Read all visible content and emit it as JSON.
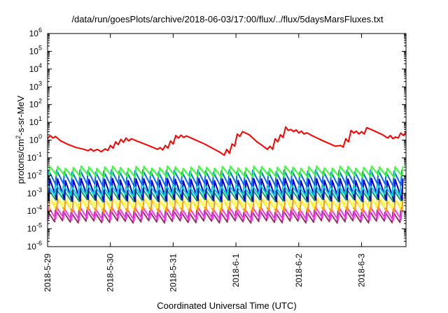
{
  "chart_data": {
    "type": "line",
    "title": "/data/run/goesPlots/archive/2018-06-03/17:00/flux/../flux/5daysMarsFluxes.txt",
    "xlabel": "Coordinated Universal Time (UTC)",
    "ylabel": "protons/cm²-s-sr-MeV",
    "ylabel_parts": {
      "pre": "protons/cm",
      "sup": "2",
      "post": "-s-sr-MeV"
    },
    "yscale": "log",
    "ylim": [
      1e-06,
      1000000.0
    ],
    "xlim": [
      "2018-05-29 00:00",
      "2018-06-03 17:00"
    ],
    "x_ticks": [
      "2018-5-29",
      "2018-5-30",
      "2018-5-31",
      "2018-6-1",
      "2018-6-2",
      "2018-6-3"
    ],
    "y_ticks": [
      {
        "value": 1e-06,
        "base": "10",
        "exp": "-6"
      },
      {
        "value": 1e-05,
        "base": "10",
        "exp": "-5"
      },
      {
        "value": 0.0001,
        "base": "10",
        "exp": "-4"
      },
      {
        "value": 0.001,
        "base": "10",
        "exp": "-3"
      },
      {
        "value": 0.01,
        "base": "10",
        "exp": "-2"
      },
      {
        "value": 0.1,
        "base": "10",
        "exp": "-1"
      },
      {
        "value": 1,
        "base": "10",
        "exp": "0"
      },
      {
        "value": 10,
        "base": "10",
        "exp": "1"
      },
      {
        "value": 100,
        "base": "10",
        "exp": "2"
      },
      {
        "value": 1000,
        "base": "10",
        "exp": "3"
      },
      {
        "value": 10000,
        "base": "10",
        "exp": "4"
      },
      {
        "value": 100000,
        "base": "10",
        "exp": "5"
      },
      {
        "value": 1000000,
        "base": "10",
        "exp": "6"
      }
    ],
    "grid": false,
    "legend": "none",
    "series": [
      {
        "color": "#ff0000",
        "points": [
          [
            "2018-05-29 00:00",
            1.2
          ],
          [
            "2018-05-29 01:00",
            1.8
          ],
          [
            "2018-05-29 02:00",
            1.3
          ],
          [
            "2018-05-29 03:00",
            1.6
          ],
          [
            "2018-05-29 05:00",
            0.9
          ],
          [
            "2018-05-29 08:00",
            0.55
          ],
          [
            "2018-05-29 11:00",
            0.38
          ],
          [
            "2018-05-29 14:00",
            0.3
          ],
          [
            "2018-05-29 15:30",
            0.25
          ],
          [
            "2018-05-29 16:30",
            0.32
          ],
          [
            "2018-05-29 17:30",
            0.24
          ],
          [
            "2018-05-29 19:00",
            0.3
          ],
          [
            "2018-05-29 20:30",
            0.22
          ],
          [
            "2018-05-29 22:00",
            0.32
          ],
          [
            "2018-05-29 23:00",
            0.26
          ],
          [
            "2018-05-30 00:00",
            0.5
          ],
          [
            "2018-05-30 01:00",
            0.35
          ],
          [
            "2018-05-30 02:00",
            0.8
          ],
          [
            "2018-05-30 03:00",
            0.55
          ],
          [
            "2018-05-30 04:00",
            1.1
          ],
          [
            "2018-05-30 05:00",
            0.75
          ],
          [
            "2018-05-30 06:00",
            1.3
          ],
          [
            "2018-05-30 07:00",
            0.9
          ],
          [
            "2018-05-30 08:00",
            1.2
          ],
          [
            "2018-05-30 10:00",
            0.9
          ],
          [
            "2018-05-30 13:00",
            0.6
          ],
          [
            "2018-05-30 16:00",
            0.4
          ],
          [
            "2018-05-30 18:00",
            0.3
          ],
          [
            "2018-05-30 19:00",
            0.38
          ],
          [
            "2018-05-30 20:00",
            0.28
          ],
          [
            "2018-05-30 21:00",
            0.5
          ],
          [
            "2018-05-30 22:00",
            0.35
          ],
          [
            "2018-05-30 23:00",
            0.9
          ],
          [
            "2018-05-31 00:00",
            0.6
          ],
          [
            "2018-05-31 01:00",
            1.8
          ],
          [
            "2018-05-31 02:00",
            1.3
          ],
          [
            "2018-05-31 03:00",
            1.9
          ],
          [
            "2018-05-31 04:00",
            1.4
          ],
          [
            "2018-05-31 05:00",
            1.7
          ],
          [
            "2018-05-31 08:00",
            1.1
          ],
          [
            "2018-05-31 12:00",
            0.6
          ],
          [
            "2018-05-31 15:00",
            0.35
          ],
          [
            "2018-05-31 18:00",
            0.2
          ],
          [
            "2018-05-31 19:30",
            0.14
          ],
          [
            "2018-05-31 20:30",
            0.3
          ],
          [
            "2018-05-31 21:30",
            0.18
          ],
          [
            "2018-05-31 22:30",
            0.6
          ],
          [
            "2018-05-31 23:30",
            0.45
          ],
          [
            "2018-06-01 00:30",
            2.2
          ],
          [
            "2018-06-01 01:30",
            1.6
          ],
          [
            "2018-06-01 02:30",
            3.0
          ],
          [
            "2018-06-01 05:00",
            2.0
          ],
          [
            "2018-06-01 08:00",
            0.8
          ],
          [
            "2018-06-01 10:00",
            0.5
          ],
          [
            "2018-06-01 12:00",
            0.3
          ],
          [
            "2018-06-01 13:00",
            0.45
          ],
          [
            "2018-06-01 14:00",
            0.3
          ],
          [
            "2018-06-01 15:00",
            1.2
          ],
          [
            "2018-06-01 16:00",
            0.8
          ],
          [
            "2018-06-01 17:00",
            2.0
          ],
          [
            "2018-06-01 18:00",
            1.4
          ],
          [
            "2018-06-01 19:00",
            5.5
          ],
          [
            "2018-06-01 20:00",
            3.5
          ],
          [
            "2018-06-01 21:00",
            4.0
          ],
          [
            "2018-06-01 22:00",
            3.0
          ],
          [
            "2018-06-01 23:00",
            3.8
          ],
          [
            "2018-06-02 00:00",
            2.5
          ],
          [
            "2018-06-02 01:00",
            3.2
          ],
          [
            "2018-06-02 02:00",
            2.2
          ],
          [
            "2018-06-02 03:00",
            2.6
          ],
          [
            "2018-06-02 05:00",
            1.8
          ],
          [
            "2018-06-02 08:00",
            1.1
          ],
          [
            "2018-06-02 11:00",
            0.7
          ],
          [
            "2018-06-02 14:00",
            0.45
          ],
          [
            "2018-06-02 16:00",
            0.5
          ],
          [
            "2018-06-02 17:00",
            0.4
          ],
          [
            "2018-06-02 18:00",
            1.2
          ],
          [
            "2018-06-02 19:00",
            0.8
          ],
          [
            "2018-06-02 20:00",
            3.5
          ],
          [
            "2018-06-02 21:00",
            2.5
          ],
          [
            "2018-06-02 22:00",
            3.2
          ],
          [
            "2018-06-02 23:00",
            2.2
          ],
          [
            "2018-06-03 00:00",
            3.0
          ],
          [
            "2018-06-03 01:00",
            2.2
          ],
          [
            "2018-06-03 02:00",
            5.0
          ],
          [
            "2018-06-03 05:00",
            3.2
          ],
          [
            "2018-06-03 08:00",
            2.0
          ],
          [
            "2018-06-03 10:00",
            1.3
          ],
          [
            "2018-06-03 11:00",
            1.8
          ],
          [
            "2018-06-03 12:00",
            1.2
          ],
          [
            "2018-06-03 13:00",
            1.5
          ],
          [
            "2018-06-03 14:00",
            1.3
          ],
          [
            "2018-06-03 15:00",
            2.5
          ],
          [
            "2018-06-03 16:00",
            1.8
          ],
          [
            "2018-06-03 17:00",
            2.8
          ]
        ]
      },
      {
        "color": "#33ff33",
        "peak": 0.03,
        "trough": 0.009
      },
      {
        "color": "#0066ff",
        "peak": 0.018,
        "trough": 0.003
      },
      {
        "color": "#00ccdd",
        "peak": 0.003,
        "trough": 0.0008
      },
      {
        "color": "#0000cc",
        "peak": 0.006,
        "trough": 0.0004
      },
      {
        "color": "#00aa66",
        "peak": 0.0015,
        "trough": 0.0004
      },
      {
        "color": "#ffff33",
        "peak": 0.001,
        "trough": 0.00015
      },
      {
        "color": "#ff9900",
        "peak": 0.0005,
        "trough": 0.0001
      },
      {
        "color": "#ff33ff",
        "peak": 0.00015,
        "trough": 3.5e-05
      },
      {
        "color": "#993366",
        "peak": 0.0001,
        "trough": 2.5e-05
      }
    ]
  }
}
